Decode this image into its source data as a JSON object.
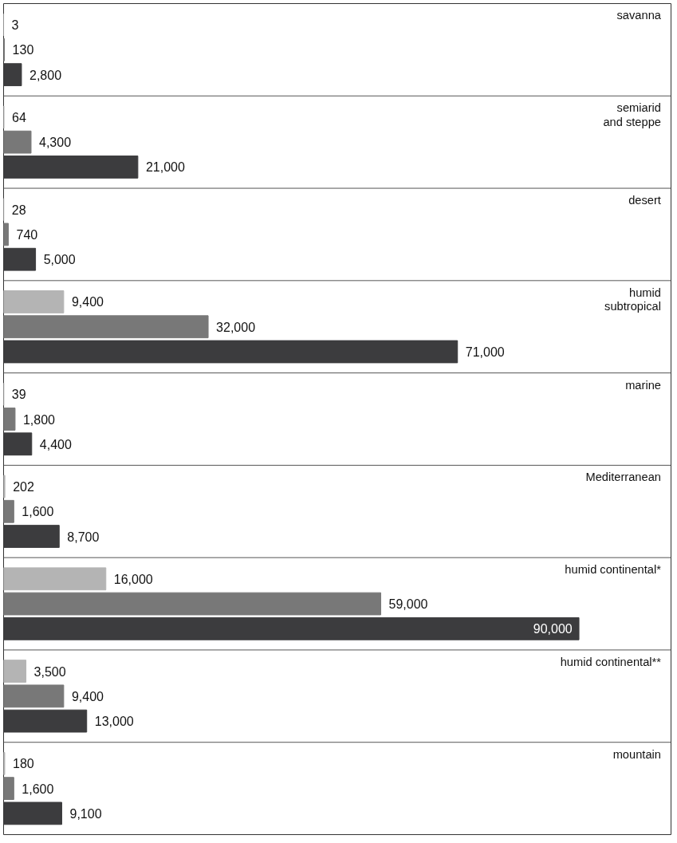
{
  "chart_data": {
    "type": "bar",
    "orientation": "horizontal",
    "grid": false,
    "categories": [
      "savanna",
      "semiarid\nand steppe",
      "desert",
      "humid\nsubtropical",
      "marine",
      "Mediterranean",
      "humid continental*",
      "humid continental**",
      "mountain"
    ],
    "series": [
      {
        "color": "#b4b4b4",
        "values": [
          3,
          64,
          28,
          9400,
          39,
          202,
          16000,
          3500,
          180
        ],
        "value_labels": [
          "3",
          "64",
          "28",
          "9,400",
          "39",
          "202",
          "16,000",
          "3,500",
          "180"
        ]
      },
      {
        "color": "#787878",
        "values": [
          130,
          4300,
          740,
          32000,
          1800,
          1600,
          59000,
          9400,
          1600
        ],
        "value_labels": [
          "130",
          "4,300",
          "740",
          "32,000",
          "1,800",
          "1,600",
          "59,000",
          "9,400",
          "1,600"
        ]
      },
      {
        "color": "#3c3c3e",
        "values": [
          2800,
          21000,
          5000,
          71000,
          4400,
          8700,
          90000,
          13000,
          9100
        ],
        "value_labels": [
          "2,800",
          "21,000",
          "5,000",
          "71,000",
          "4,400",
          "8,700",
          "90,000",
          "13,000",
          "9,100"
        ]
      }
    ]
  }
}
